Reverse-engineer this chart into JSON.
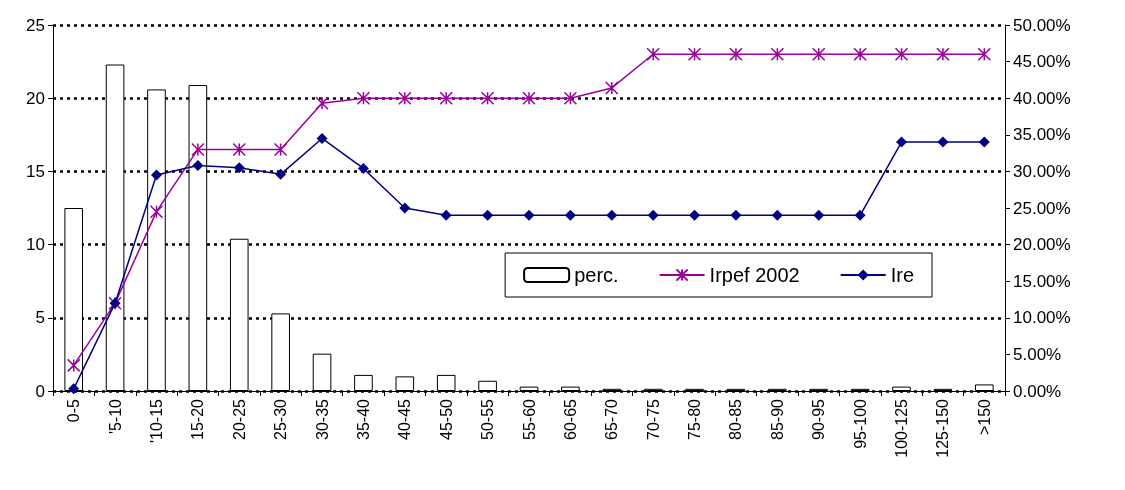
{
  "chart_data": {
    "type": "bar",
    "categories": [
      "0-5",
      "'5-10",
      "'10-15",
      "15-20",
      "20-25",
      "25-30",
      "30-35",
      "35-40",
      "40-45",
      "45-50",
      "50-55",
      "55-60",
      "60-65",
      "65-70",
      "70-75",
      "75-80",
      "80-85",
      "85-90",
      "90-95",
      "95-100",
      "100-125",
      "125-150",
      ">150"
    ],
    "series": [
      {
        "name": "perc.",
        "color": "#ffffff",
        "values": [
          12.5,
          22.3,
          20.6,
          20.9,
          10.4,
          5.3,
          2.55,
          1.1,
          1.0,
          1.1,
          0.7,
          0.3,
          0.3,
          0.15,
          0.15,
          0.15,
          0.15,
          0.15,
          0.15,
          0.15,
          0.3,
          0.15,
          0.45
        ]
      },
      {
        "name": "Irpef 2002",
        "type": "line",
        "axis": "y2",
        "color": "#990099",
        "marker": "cross",
        "values": [
          3.5,
          12,
          24.5,
          33,
          33,
          33,
          39.3,
          40,
          40,
          40,
          40,
          40,
          40,
          41.4,
          46,
          46,
          46,
          46,
          46,
          46,
          46,
          46,
          46
        ]
      },
      {
        "name": "Ire",
        "type": "line",
        "axis": "y2",
        "color": "#000080",
        "marker": "diamond",
        "values": [
          0.3,
          12,
          29.5,
          30.8,
          30.5,
          29.6,
          34.5,
          30.4,
          25,
          24,
          24,
          24,
          24,
          24,
          24,
          24,
          24,
          24,
          24,
          24,
          34,
          34,
          34
        ]
      }
    ],
    "ylim": [
      0,
      25
    ],
    "yticks": [
      0,
      5,
      10,
      15,
      20,
      25
    ],
    "y2lim": [
      0,
      50
    ],
    "y2ticks": [
      {
        "value": 0,
        "label": "0.00%"
      },
      {
        "value": 5,
        "label": "5.00%"
      },
      {
        "value": 10,
        "label": "10.00%"
      },
      {
        "value": 15,
        "label": "15.00%"
      },
      {
        "value": 20,
        "label": "20.00%"
      },
      {
        "value": 25,
        "label": "25.00%"
      },
      {
        "value": 30,
        "label": "30.00%"
      },
      {
        "value": 35,
        "label": "35.00%"
      },
      {
        "value": 40,
        "label": "40.00%"
      },
      {
        "value": 45,
        "label": "45.00%"
      },
      {
        "value": 50,
        "label": "50.00%"
      }
    ],
    "grid": "y",
    "legend": "right"
  }
}
